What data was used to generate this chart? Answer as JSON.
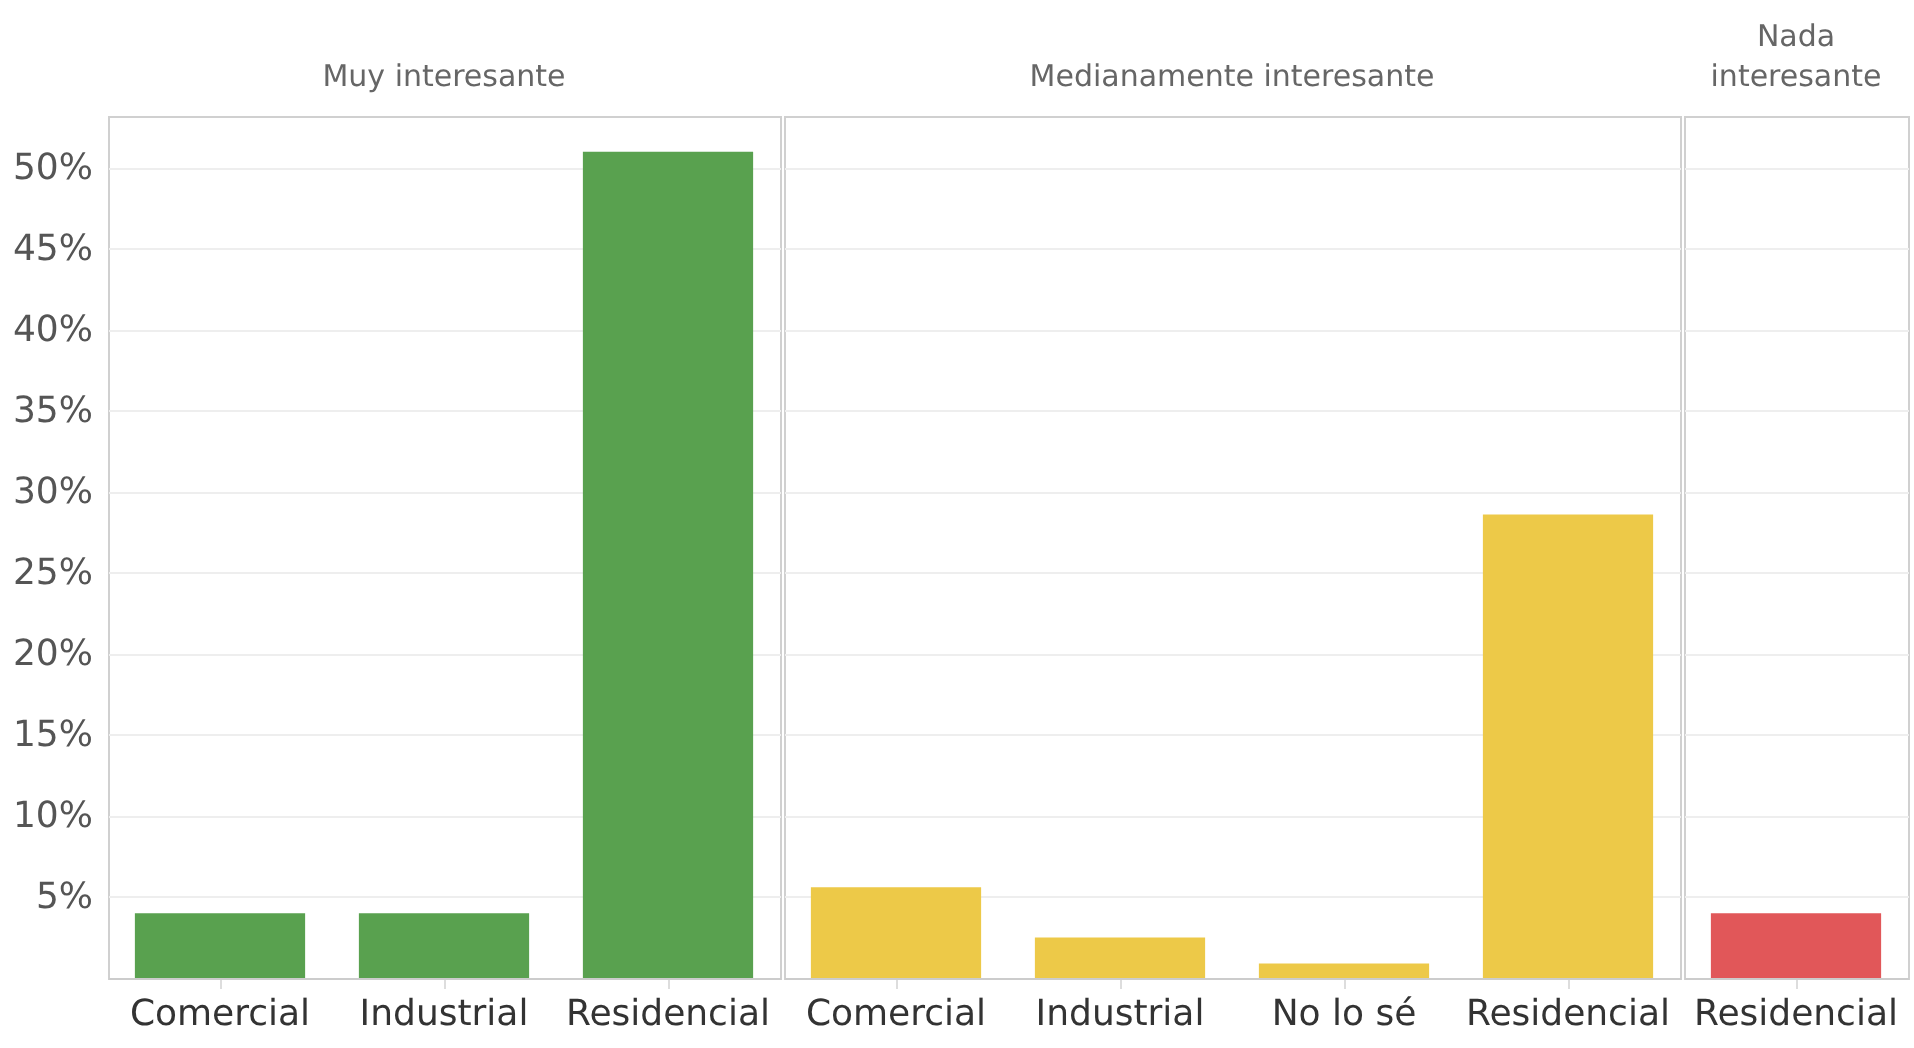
{
  "chart_data": [
    {
      "type": "bar",
      "title": "Muy interesante",
      "categories": [
        "Comercial",
        "Industrial",
        "Residencial"
      ],
      "values": [
        4,
        4,
        51
      ],
      "color": "#59a14f",
      "ylim": [
        0,
        53.2
      ],
      "yticks": [
        {
          "value": 5,
          "label": "5%"
        },
        {
          "value": 10,
          "label": "10%"
        },
        {
          "value": 15,
          "label": "15%"
        },
        {
          "value": 20,
          "label": "20%"
        },
        {
          "value": 25,
          "label": "25%"
        },
        {
          "value": 30,
          "label": "30%"
        },
        {
          "value": 35,
          "label": "35%"
        },
        {
          "value": 40,
          "label": "40%"
        },
        {
          "value": 45,
          "label": "45%"
        },
        {
          "value": 50,
          "label": "50%"
        }
      ],
      "grid": "y"
    },
    {
      "type": "bar",
      "title": "Medianamente interesante",
      "categories": [
        "Comercial",
        "Industrial",
        "No lo sé",
        "Residencial"
      ],
      "values": [
        5.6,
        2.5,
        0.9,
        28.6
      ],
      "color": "#edc948",
      "ylim": [
        0,
        53.2
      ],
      "yticks": [
        {
          "value": 5,
          "label": null
        },
        {
          "value": 10,
          "label": null
        },
        {
          "value": 15,
          "label": null
        },
        {
          "value": 20,
          "label": null
        },
        {
          "value": 25,
          "label": null
        },
        {
          "value": 30,
          "label": null
        },
        {
          "value": 35,
          "label": null
        },
        {
          "value": 40,
          "label": null
        },
        {
          "value": 45,
          "label": null
        },
        {
          "value": 50,
          "label": null
        }
      ],
      "grid": "y",
      "tick_labels": "x"
    },
    {
      "type": "bar",
      "title": "Nada interesante",
      "categories": [
        "Residencial"
      ],
      "values": [
        4
      ],
      "color": "#e15759",
      "ylim": [
        0,
        53.2
      ],
      "yticks": [
        {
          "value": 5,
          "label": null
        },
        {
          "value": 10,
          "label": null
        },
        {
          "value": 15,
          "label": null
        },
        {
          "value": 20,
          "label": null
        },
        {
          "value": 25,
          "label": null
        },
        {
          "value": 30,
          "label": null
        },
        {
          "value": 35,
          "label": null
        },
        {
          "value": 40,
          "label": null
        },
        {
          "value": 45,
          "label": null
        },
        {
          "value": 50,
          "label": null
        }
      ],
      "grid": "y",
      "tick_labels": "x"
    }
  ]
}
